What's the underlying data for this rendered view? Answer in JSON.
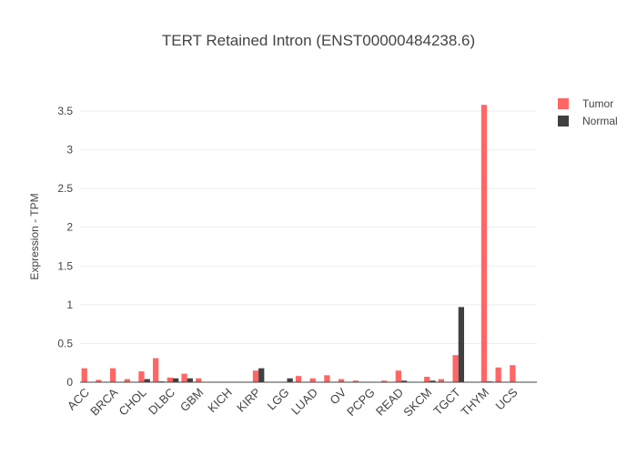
{
  "chart_data": {
    "type": "bar",
    "title": "TERT Retained Intron (ENST00000484238.6)",
    "y_label": "Expression - TPM",
    "categories": [
      "ACC",
      null,
      "BRCA",
      null,
      "CHOL",
      null,
      "DLBC",
      null,
      "GBM",
      null,
      "KICH",
      null,
      "KIRP",
      null,
      "LGG",
      null,
      "LUAD",
      null,
      "OV",
      null,
      "PCPG",
      null,
      "READ",
      null,
      "SKCM",
      null,
      "TGCT",
      null,
      "THYM",
      null,
      "UCS",
      null
    ],
    "series": [
      {
        "name": "Tumor",
        "color": "#ff6666",
        "values": [
          0.18,
          0.03,
          0.18,
          0.04,
          0.14,
          0.31,
          0.06,
          0.11,
          0.05,
          0,
          0,
          0,
          0.15,
          0,
          0,
          0.08,
          0.05,
          0.09,
          0.04,
          0.02,
          0,
          0.02,
          0.15,
          0,
          0.07,
          0.04,
          0.35,
          0,
          3.58,
          0.19,
          0.22,
          0
        ]
      },
      {
        "name": "Normal",
        "color": "#404040",
        "values": [
          0,
          0,
          0,
          0,
          0.04,
          0.01,
          0.05,
          0.05,
          0,
          0,
          0,
          0,
          0.18,
          0,
          0.05,
          0,
          0,
          0,
          0,
          0,
          0,
          0,
          0.02,
          0,
          0.02,
          0,
          0.97,
          0,
          0.01,
          0,
          0,
          0
        ]
      }
    ],
    "ylim": [
      0,
      3.79
    ],
    "yticks": [
      0,
      0.5,
      1,
      1.5,
      2,
      2.5,
      3,
      3.5
    ],
    "grid": true,
    "legend": "top-right"
  }
}
